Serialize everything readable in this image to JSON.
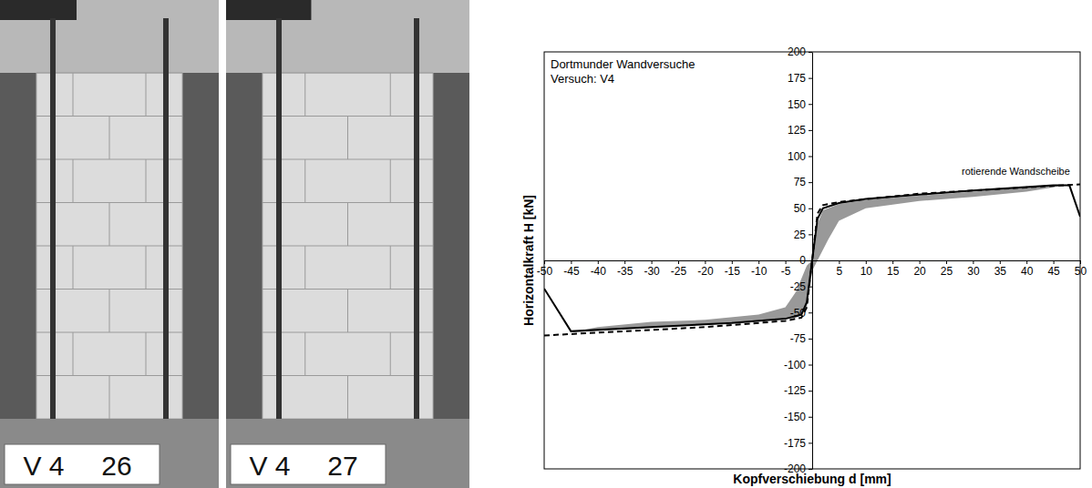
{
  "photos": [
    {
      "label": "V 4",
      "number": "26"
    },
    {
      "label": "V 4",
      "number": "27"
    }
  ],
  "chart_data": {
    "type": "line",
    "title": "Dortmunder Wandversuche",
    "subtitle": "Versuch: V4",
    "x_label": "Kopfverschiebung d [mm]",
    "y_label": "Horizontalkraft H [kN]",
    "xlim": [
      -50,
      50
    ],
    "ylim": [
      -200,
      200
    ],
    "xticks": [
      -50,
      -45,
      -40,
      -35,
      -30,
      -25,
      -20,
      -15,
      -10,
      -5,
      5,
      10,
      15,
      20,
      25,
      30,
      35,
      40,
      45,
      50
    ],
    "yticks": [
      -200,
      -175,
      -150,
      -125,
      -100,
      -75,
      -50,
      -25,
      0,
      25,
      50,
      75,
      100,
      125,
      150,
      175,
      200
    ],
    "grid": false,
    "annotations": [
      {
        "text": "rotierende Wandscheibe",
        "x": 38,
        "y": 82
      }
    ],
    "series": [
      {
        "type": "area",
        "color": "#999999",
        "x": [
          0,
          1,
          2,
          5,
          10,
          20,
          30,
          40,
          45,
          47,
          45,
          40,
          30,
          20,
          10,
          5,
          3,
          1,
          0,
          -1,
          -3,
          -10,
          -20,
          -30,
          -43,
          -40,
          -30,
          -20,
          -10,
          -5,
          -3,
          -1
        ],
        "values": [
          0,
          35,
          48,
          54,
          58,
          62,
          66,
          70,
          72,
          72,
          70,
          66,
          61,
          57,
          50,
          38,
          20,
          0,
          -10,
          -45,
          -55,
          -58,
          -62,
          -64,
          -67,
          -64,
          -59,
          -57,
          -52,
          -45,
          -30,
          -5
        ]
      },
      {
        "type": "line",
        "color": "#000000",
        "line_style": "solid",
        "x": [
          -50,
          -45,
          -30,
          -15,
          -5,
          -2,
          -1,
          0,
          1,
          2,
          5,
          10,
          20,
          30,
          45,
          48,
          50
        ],
        "values": [
          -27,
          -68,
          -64,
          -60,
          -56,
          -52,
          -40,
          0,
          40,
          50,
          55,
          59,
          63,
          67,
          72,
          72,
          42
        ]
      },
      {
        "type": "line",
        "color": "#000000",
        "line_style": "dashed",
        "x": [
          -50,
          -20,
          -5,
          -2,
          -1,
          0,
          1,
          2,
          5,
          20,
          50
        ],
        "values": [
          -72,
          -64,
          -58,
          -55,
          -45,
          0,
          45,
          53,
          56,
          64,
          73
        ]
      }
    ]
  }
}
